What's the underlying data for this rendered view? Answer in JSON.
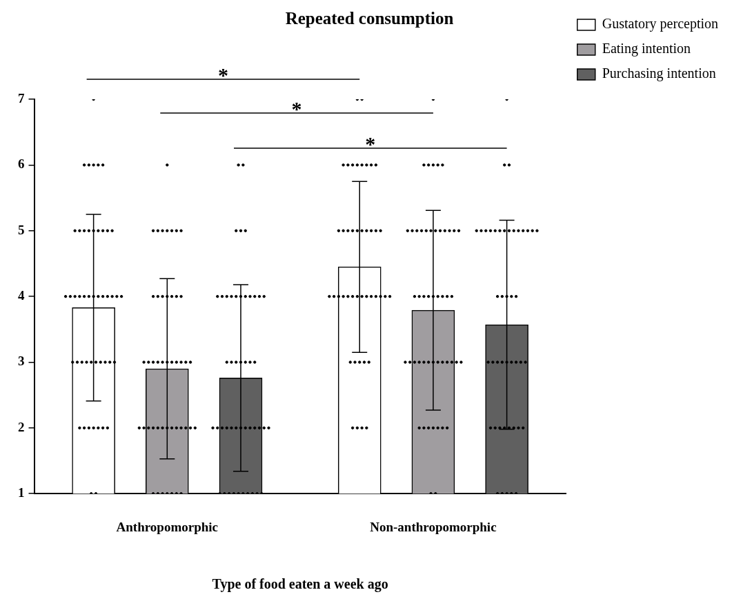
{
  "chart_data": {
    "type": "bar",
    "title": "Repeated consumption",
    "xlabel": "Type of food eaten a week ago",
    "categories": [
      "Anthropomorphic",
      "Non-anthropomorphic"
    ],
    "ylim": [
      1,
      7
    ],
    "yticks": [
      1,
      2,
      3,
      4,
      5,
      6,
      7
    ],
    "grid": false,
    "legend": "right",
    "marker": "circle",
    "annotations": [
      "*",
      "*",
      "*"
    ],
    "series": [
      {
        "name": "Gustatory perception",
        "color": "#ffffff",
        "values": [
          3.83,
          4.45
        ],
        "errors": [
          1.42,
          1.3
        ]
      },
      {
        "name": "Eating intention",
        "color": "#a09da0",
        "values": [
          2.9,
          3.79
        ],
        "errors": [
          1.37,
          1.52
        ]
      },
      {
        "name": "Purchasing intention",
        "color": "#606060",
        "values": [
          2.76,
          3.57
        ],
        "errors": [
          1.42,
          1.59
        ]
      },
      {
        "type": "scatter",
        "color": "#000000",
        "x": [
          "Anthropomorphic",
          "Anthropomorphic",
          "Anthropomorphic",
          "Anthropomorphic",
          "Anthropomorphic",
          "Anthropomorphic",
          "Anthropomorphic",
          "Anthropomorphic",
          "Anthropomorphic",
          "Anthropomorphic",
          "Anthropomorphic",
          "Anthropomorphic",
          "Anthropomorphic",
          "Anthropomorphic",
          "Anthropomorphic",
          "Anthropomorphic",
          "Anthropomorphic",
          "Anthropomorphic",
          "Anthropomorphic",
          "Anthropomorphic",
          "Anthropomorphic",
          "Anthropomorphic",
          "Anthropomorphic",
          "Anthropomorphic",
          "Anthropomorphic",
          "Anthropomorphic",
          "Anthropomorphic",
          "Anthropomorphic",
          "Anthropomorphic",
          "Anthropomorphic",
          "Anthropomorphic",
          "Anthropomorphic",
          "Anthropomorphic",
          "Anthropomorphic",
          "Anthropomorphic",
          "Anthropomorphic",
          "Anthropomorphic",
          "Anthropomorphic",
          "Anthropomorphic",
          "Anthropomorphic",
          "Anthropomorphic",
          "Anthropomorphic",
          "Anthropomorphic",
          "Anthropomorphic",
          "Anthropomorphic",
          "Anthropomorphic",
          "Anthropomorphic",
          "Non-anthropomorphic",
          "Non-anthropomorphic",
          "Non-anthropomorphic",
          "Non-anthropomorphic",
          "Non-anthropomorphic",
          "Non-anthropomorphic",
          "Non-anthropomorphic",
          "Non-anthropomorphic",
          "Non-anthropomorphic",
          "Non-anthropomorphic",
          "Non-anthropomorphic",
          "Non-anthropomorphic",
          "Non-anthropomorphic",
          "Non-anthropomorphic",
          "Non-anthropomorphic",
          "Non-anthropomorphic",
          "Non-anthropomorphic",
          "Non-anthropomorphic",
          "Non-anthropomorphic",
          "Non-anthropomorphic",
          "Non-anthropomorphic",
          "Non-anthropomorphic",
          "Non-anthropomorphic",
          "Non-anthropomorphic",
          "Non-anthropomorphic",
          "Non-anthropomorphic",
          "Non-anthropomorphic",
          "Non-anthropomorphic",
          "Non-anthropomorphic",
          "Non-anthropomorphic",
          "Non-anthropomorphic",
          "Non-anthropomorphic",
          "Non-anthropomorphic",
          "Non-anthropomorphic",
          "Non-anthropomorphic",
          "Non-anthropomorphic",
          "Non-anthropomorphic",
          "Non-anthropomorphic",
          "Non-anthropomorphic",
          "Non-anthropomorphic",
          "Non-anthropomorphic",
          "Non-anthropomorphic",
          "Non-anthropomorphic"
        ],
        "values": [
          7,
          6,
          6,
          6,
          6,
          6,
          5,
          5,
          5,
          5,
          5,
          5,
          5,
          5,
          5,
          4,
          4,
          4,
          4,
          4,
          4,
          4,
          4,
          4,
          4,
          4,
          4,
          4,
          3,
          3,
          3,
          3,
          3,
          3,
          3,
          3,
          3,
          3,
          2,
          2,
          2,
          2,
          2,
          2,
          2,
          1,
          1,
          7,
          7,
          6,
          6,
          6,
          6,
          6,
          6,
          6,
          6,
          5,
          5,
          5,
          5,
          5,
          5,
          5,
          5,
          5,
          5,
          4,
          4,
          4,
          4,
          4,
          4,
          4,
          4,
          4,
          4,
          4,
          4,
          4,
          4,
          3,
          3,
          3,
          3,
          3,
          2,
          2,
          2,
          2
        ]
      },
      {
        "type": "scatter",
        "color": "#000000",
        "x": [
          "Anthropomorphic",
          "Anthropomorphic",
          "Anthropomorphic",
          "Anthropomorphic",
          "Anthropomorphic",
          "Anthropomorphic",
          "Anthropomorphic",
          "Anthropomorphic",
          "Anthropomorphic",
          "Anthropomorphic",
          "Anthropomorphic",
          "Anthropomorphic",
          "Anthropomorphic",
          "Anthropomorphic",
          "Anthropomorphic",
          "Anthropomorphic",
          "Anthropomorphic",
          "Anthropomorphic",
          "Anthropomorphic",
          "Anthropomorphic",
          "Anthropomorphic",
          "Anthropomorphic",
          "Anthropomorphic",
          "Anthropomorphic",
          "Anthropomorphic",
          "Anthropomorphic",
          "Anthropomorphic",
          "Anthropomorphic",
          "Anthropomorphic",
          "Anthropomorphic",
          "Anthropomorphic",
          "Anthropomorphic",
          "Anthropomorphic",
          "Anthropomorphic",
          "Anthropomorphic",
          "Anthropomorphic",
          "Anthropomorphic",
          "Anthropomorphic",
          "Anthropomorphic",
          "Anthropomorphic",
          "Anthropomorphic",
          "Anthropomorphic",
          "Anthropomorphic",
          "Anthropomorphic",
          "Anthropomorphic",
          "Anthropomorphic",
          "Non-anthropomorphic",
          "Non-anthropomorphic",
          "Non-anthropomorphic",
          "Non-anthropomorphic",
          "Non-anthropomorphic",
          "Non-anthropomorphic",
          "Non-anthropomorphic",
          "Non-anthropomorphic",
          "Non-anthropomorphic",
          "Non-anthropomorphic",
          "Non-anthropomorphic",
          "Non-anthropomorphic",
          "Non-anthropomorphic",
          "Non-anthropomorphic",
          "Non-anthropomorphic",
          "Non-anthropomorphic",
          "Non-anthropomorphic",
          "Non-anthropomorphic",
          "Non-anthropomorphic",
          "Non-anthropomorphic",
          "Non-anthropomorphic",
          "Non-anthropomorphic",
          "Non-anthropomorphic",
          "Non-anthropomorphic",
          "Non-anthropomorphic",
          "Non-anthropomorphic",
          "Non-anthropomorphic",
          "Non-anthropomorphic",
          "Non-anthropomorphic",
          "Non-anthropomorphic",
          "Non-anthropomorphic",
          "Non-anthropomorphic",
          "Non-anthropomorphic",
          "Non-anthropomorphic",
          "Non-anthropomorphic",
          "Non-anthropomorphic",
          "Non-anthropomorphic",
          "Non-anthropomorphic",
          "Non-anthropomorphic",
          "Non-anthropomorphic",
          "Non-anthropomorphic",
          "Non-anthropomorphic",
          "Non-anthropomorphic",
          "Non-anthropomorphic",
          "Non-anthropomorphic",
          "Non-anthropomorphic",
          "Non-anthropomorphic",
          "Non-anthropomorphic",
          "Non-anthropomorphic"
        ],
        "values": [
          6,
          5,
          5,
          5,
          5,
          5,
          5,
          5,
          4,
          4,
          4,
          4,
          4,
          4,
          4,
          3,
          3,
          3,
          3,
          3,
          3,
          3,
          3,
          3,
          3,
          3,
          2,
          2,
          2,
          2,
          2,
          2,
          2,
          2,
          2,
          2,
          2,
          2,
          2,
          1,
          1,
          1,
          1,
          1,
          1,
          1,
          7,
          6,
          6,
          6,
          6,
          6,
          5,
          5,
          5,
          5,
          5,
          5,
          5,
          5,
          5,
          5,
          5,
          5,
          4,
          4,
          4,
          4,
          4,
          4,
          4,
          4,
          4,
          3,
          3,
          3,
          3,
          3,
          3,
          3,
          3,
          3,
          3,
          3,
          3,
          3,
          2,
          2,
          2,
          2,
          2,
          2,
          2,
          1,
          1
        ]
      },
      {
        "type": "scatter",
        "color": "#000000",
        "x": [
          "Anthropomorphic",
          "Anthropomorphic",
          "Anthropomorphic",
          "Anthropomorphic",
          "Anthropomorphic",
          "Anthropomorphic",
          "Anthropomorphic",
          "Anthropomorphic",
          "Anthropomorphic",
          "Anthropomorphic",
          "Anthropomorphic",
          "Anthropomorphic",
          "Anthropomorphic",
          "Anthropomorphic",
          "Anthropomorphic",
          "Anthropomorphic",
          "Anthropomorphic",
          "Anthropomorphic",
          "Anthropomorphic",
          "Anthropomorphic",
          "Anthropomorphic",
          "Anthropomorphic",
          "Anthropomorphic",
          "Anthropomorphic",
          "Anthropomorphic",
          "Anthropomorphic",
          "Anthropomorphic",
          "Anthropomorphic",
          "Anthropomorphic",
          "Anthropomorphic",
          "Anthropomorphic",
          "Anthropomorphic",
          "Anthropomorphic",
          "Anthropomorphic",
          "Anthropomorphic",
          "Anthropomorphic",
          "Anthropomorphic",
          "Anthropomorphic",
          "Anthropomorphic",
          "Anthropomorphic",
          "Anthropomorphic",
          "Anthropomorphic",
          "Anthropomorphic",
          "Anthropomorphic",
          "Anthropomorphic",
          "Anthropomorphic",
          "Non-anthropomorphic",
          "Non-anthropomorphic",
          "Non-anthropomorphic",
          "Non-anthropomorphic",
          "Non-anthropomorphic",
          "Non-anthropomorphic",
          "Non-anthropomorphic",
          "Non-anthropomorphic",
          "Non-anthropomorphic",
          "Non-anthropomorphic",
          "Non-anthropomorphic",
          "Non-anthropomorphic",
          "Non-anthropomorphic",
          "Non-anthropomorphic",
          "Non-anthropomorphic",
          "Non-anthropomorphic",
          "Non-anthropomorphic",
          "Non-anthropomorphic",
          "Non-anthropomorphic",
          "Non-anthropomorphic",
          "Non-anthropomorphic",
          "Non-anthropomorphic",
          "Non-anthropomorphic",
          "Non-anthropomorphic",
          "Non-anthropomorphic",
          "Non-anthropomorphic",
          "Non-anthropomorphic",
          "Non-anthropomorphic",
          "Non-anthropomorphic",
          "Non-anthropomorphic",
          "Non-anthropomorphic",
          "Non-anthropomorphic",
          "Non-anthropomorphic",
          "Non-anthropomorphic",
          "Non-anthropomorphic",
          "Non-anthropomorphic",
          "Non-anthropomorphic",
          "Non-anthropomorphic",
          "Non-anthropomorphic",
          "Non-anthropomorphic",
          "Non-anthropomorphic",
          "Non-anthropomorphic",
          "Non-anthropomorphic",
          "Non-anthropomorphic"
        ],
        "values": [
          6,
          6,
          5,
          5,
          5,
          4,
          4,
          4,
          4,
          4,
          4,
          4,
          4,
          4,
          4,
          4,
          3,
          3,
          3,
          3,
          3,
          3,
          3,
          2,
          2,
          2,
          2,
          2,
          2,
          2,
          2,
          2,
          2,
          2,
          2,
          2,
          1,
          1,
          1,
          1,
          1,
          1,
          1,
          1,
          1,
          1,
          7,
          6,
          6,
          5,
          5,
          5,
          5,
          5,
          5,
          5,
          5,
          5,
          5,
          5,
          5,
          5,
          5,
          4,
          4,
          4,
          4,
          4,
          3,
          3,
          3,
          3,
          3,
          3,
          3,
          3,
          3,
          2,
          2,
          2,
          2,
          2,
          2,
          2,
          2,
          1,
          1,
          1,
          1,
          1
        ]
      }
    ]
  }
}
